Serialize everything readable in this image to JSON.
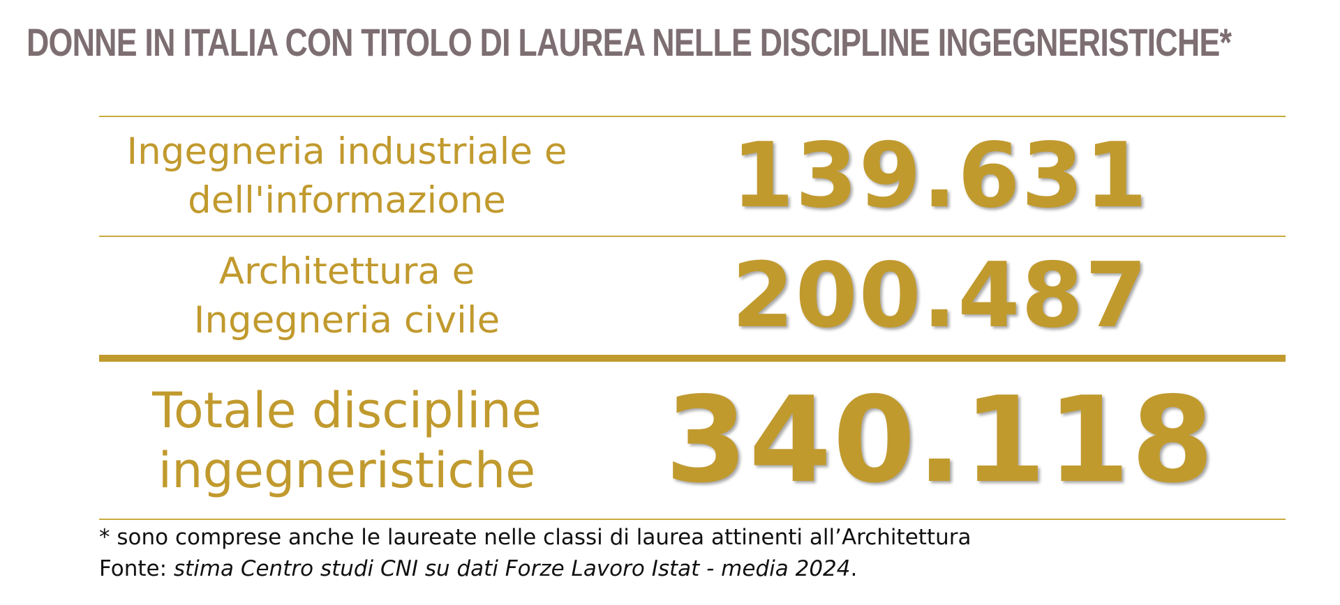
{
  "chart_data": {
    "type": "table",
    "title": "DONNE IN ITALIA CON TITOLO DI LAUREA NELLE DISCIPLINE INGEGNERISTICHE*",
    "rows": [
      {
        "label_line1": "Ingegneria industriale e",
        "label_line2": "dell'informazione",
        "value": 139631,
        "value_text": "139.631"
      },
      {
        "label_line1": "Architettura e",
        "label_line2": "Ingegneria civile",
        "value": 200487,
        "value_text": "200.487"
      }
    ],
    "total": {
      "label_line1": "Totale discipline",
      "label_line2": "ingegneristiche",
      "value": 340118,
      "value_text": "340.118"
    },
    "footnote": "* sono comprese anche le laureate nelle classi di laurea attinenti all’Architettura",
    "source_prefix": "Fonte: ",
    "source_text": "stima Centro studi CNI su dati Forze Lavoro Istat - media 2024",
    "source_suffix": "."
  },
  "colors": {
    "title": "#7d6e72",
    "accent": "#c19a2e",
    "text": "#111111"
  }
}
